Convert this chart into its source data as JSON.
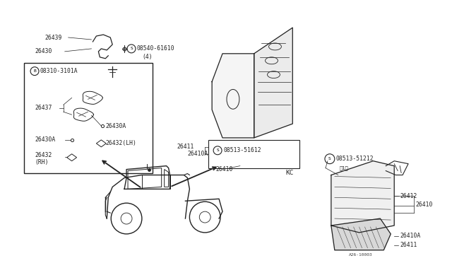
{
  "bg_color": "#ffffff",
  "lc": "#222222",
  "fig_w": 6.4,
  "fig_h": 3.72,
  "dpi": 100,
  "fs": 5.8,
  "fs_small": 5.0,
  "part_ref": "A26-10003",
  "KC_label": "KC",
  "labels_top_left": {
    "26439": [
      0.092,
      0.892
    ],
    "26430": [
      0.068,
      0.838
    ]
  },
  "screw_label": "08540-61610",
  "screw_sub": "(4)",
  "bolt_label": "08310-3101A",
  "label_26437": "26437",
  "label_26430A_up": "26430A",
  "label_26430A_dn": "26430A",
  "label_26432LH": "26432(LH)",
  "label_26432RH": "26432",
  "label_26432RH2": "(RH)",
  "label_26411m": "26411",
  "label_26410Am": "26410A",
  "label_s51612": "08513-51612",
  "label_26410m": "26410",
  "label_s51212": "08513-51212",
  "label_1": "（1）",
  "label_26412": "26412",
  "label_26410r": "26410",
  "label_26410Ar": "26410A",
  "label_26411r": "26411"
}
